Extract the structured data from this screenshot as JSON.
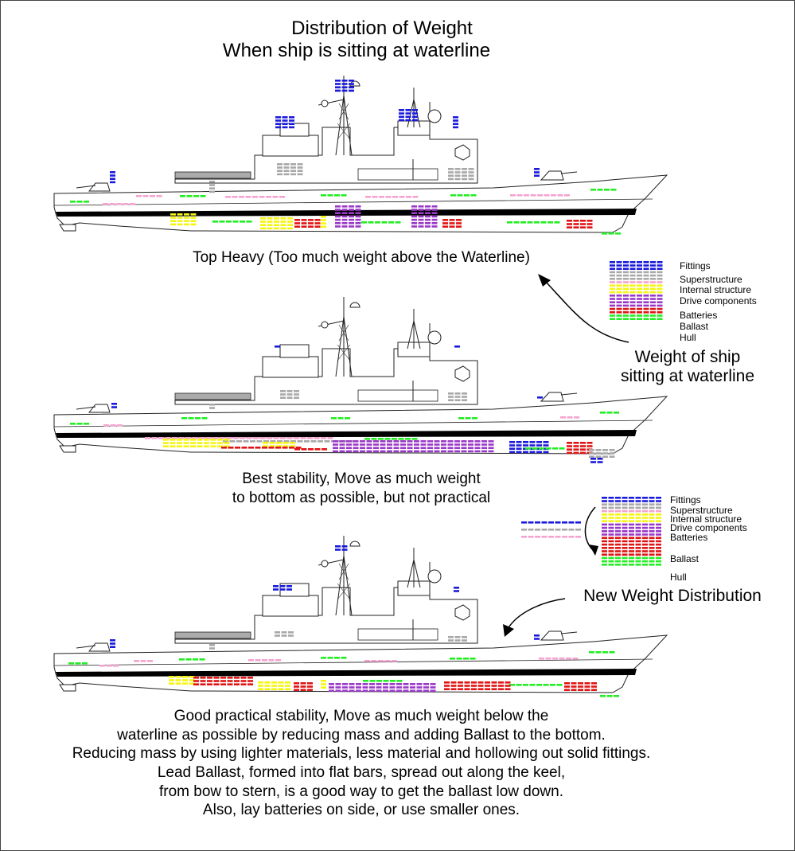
{
  "title": {
    "line1": "Distribution of Weight",
    "line2": "When ship is sitting at waterline"
  },
  "colors": {
    "fittings": "#1a1adc",
    "superstructure": "#a8a8a8",
    "internal_structure": "#f5a3cf",
    "drive_components": "#f5f512",
    "batteries": "#9a38c8",
    "ballast": "#e01414",
    "hull": "#22ee22",
    "outline": "#222222",
    "waterline": "#000000"
  },
  "scenario_top_heavy": {
    "caption": "Top Heavy (Too much weight above the Waterline)"
  },
  "scenario_best": {
    "caption_line1": "Best stability, Move as much weight",
    "caption_line2": "to bottom as possible, but not practical"
  },
  "scenario_practical": {
    "caption_lines": [
      "Good practical stability, Move as much weight below the",
      "waterline as possible by reducing mass and adding Ballast to the bottom.",
      "Reducing mass by using lighter materials, less material and hollowing out solid fittings.",
      "Lead Ballast, formed into flat bars, spread out along the keel,",
      "from bow to stern, is a good way to get the ballast low down.",
      "Also, lay batteries on side, or use smaller ones."
    ]
  },
  "legend_waterline": {
    "caption_line1": "Weight of ship",
    "caption_line2": "sitting at waterline",
    "items": [
      {
        "label": "Fittings",
        "color_key": "fittings",
        "rows": 3
      },
      {
        "label": "Superstructure",
        "color_key": "superstructure",
        "rows": 3
      },
      {
        "label": "Internal structure",
        "color_key": "internal_structure",
        "rows": 1
      },
      {
        "label": "Drive components",
        "color_key": "drive_components",
        "rows": 3
      },
      {
        "label": "Batteries",
        "color_key": "batteries",
        "rows": 4
      },
      {
        "label": "Ballast",
        "color_key": "ballast",
        "rows": 2
      },
      {
        "label": "Hull",
        "color_key": "hull",
        "rows": 2
      }
    ]
  },
  "legend_new": {
    "caption": "New Weight Distribution",
    "items": [
      {
        "label": "Fittings",
        "color_key": "fittings",
        "rows": 2
      },
      {
        "label": "Superstructure",
        "color_key": "superstructure",
        "rows": 2
      },
      {
        "label": "Internal structure",
        "color_key": "internal_structure",
        "rows": 1
      },
      {
        "label": "Drive components",
        "color_key": "drive_components",
        "rows": 3
      },
      {
        "label": "Batteries",
        "color_key": "batteries",
        "rows": 4
      },
      {
        "label": "Ballast",
        "color_key": "ballast",
        "rows": 6
      },
      {
        "label": "Hull",
        "color_key": "hull",
        "rows": 3
      }
    ],
    "removed_items": [
      {
        "color_key": "fittings",
        "rows": 1
      },
      {
        "color_key": "superstructure",
        "rows": 1
      },
      {
        "color_key": "internal_structure",
        "rows": 1
      }
    ]
  }
}
